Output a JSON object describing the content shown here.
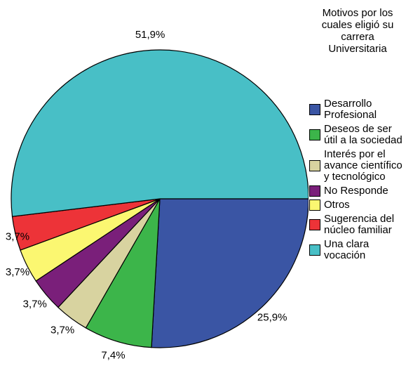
{
  "chart_data": {
    "type": "pie",
    "legend_title": "Motivos por los cuales eligió su carrera Universitaria",
    "categories": [
      "Desarrollo Profesional",
      "Deseos de ser útil a la sociedad",
      "Interés por el avance científico y tecnológico",
      "No Responde",
      "Otros",
      "Sugerencia del núcleo familiar",
      "Una clara vocación"
    ],
    "values": [
      25.9,
      7.4,
      3.7,
      3.7,
      3.7,
      3.7,
      51.9
    ],
    "value_labels": [
      "25,9%",
      "7,4%",
      "3,7%",
      "3,7%",
      "3,7%",
      "3,7%",
      "51,9%"
    ],
    "colors": [
      "#3a55a4",
      "#3cb54a",
      "#d8d3a0",
      "#7a1f7a",
      "#fbf771",
      "#ed3338",
      "#48bfc6"
    ]
  }
}
